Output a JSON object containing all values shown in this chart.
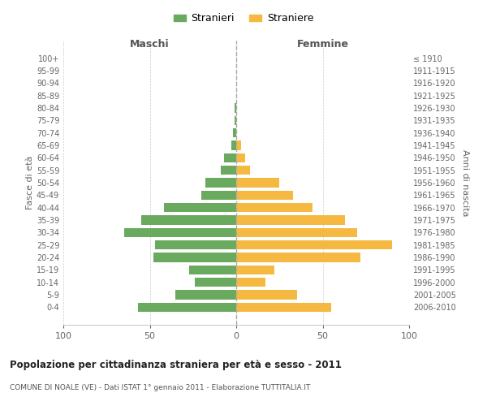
{
  "age_groups": [
    "0-4",
    "5-9",
    "10-14",
    "15-19",
    "20-24",
    "25-29",
    "30-34",
    "35-39",
    "40-44",
    "45-49",
    "50-54",
    "55-59",
    "60-64",
    "65-69",
    "70-74",
    "75-79",
    "80-84",
    "85-89",
    "90-94",
    "95-99",
    "100+"
  ],
  "birth_years": [
    "2006-2010",
    "2001-2005",
    "1996-2000",
    "1991-1995",
    "1986-1990",
    "1981-1985",
    "1976-1980",
    "1971-1975",
    "1966-1970",
    "1961-1965",
    "1956-1960",
    "1951-1955",
    "1946-1950",
    "1941-1945",
    "1936-1940",
    "1931-1935",
    "1926-1930",
    "1921-1925",
    "1916-1920",
    "1911-1915",
    "≤ 1910"
  ],
  "maschi": [
    57,
    35,
    24,
    27,
    48,
    47,
    65,
    55,
    42,
    20,
    18,
    9,
    7,
    3,
    2,
    1,
    1,
    0,
    0,
    0,
    0
  ],
  "femmine": [
    55,
    35,
    17,
    22,
    72,
    90,
    70,
    63,
    44,
    33,
    25,
    8,
    5,
    3,
    0,
    0,
    0,
    0,
    0,
    0,
    0
  ],
  "color_maschi": "#6aaa5e",
  "color_femmine": "#f5b942",
  "title": "Popolazione per cittadinanza straniera per età e sesso - 2011",
  "subtitle": "COMUNE DI NOALE (VE) - Dati ISTAT 1° gennaio 2011 - Elaborazione TUTTITALIA.IT",
  "label_maschi": "Stranieri",
  "label_femmine": "Straniere",
  "xlabel_left": "Maschi",
  "xlabel_right": "Femmine",
  "ylabel_left": "Fasce di età",
  "ylabel_right": "Anni di nascita",
  "xlim": 100,
  "background_color": "#ffffff"
}
